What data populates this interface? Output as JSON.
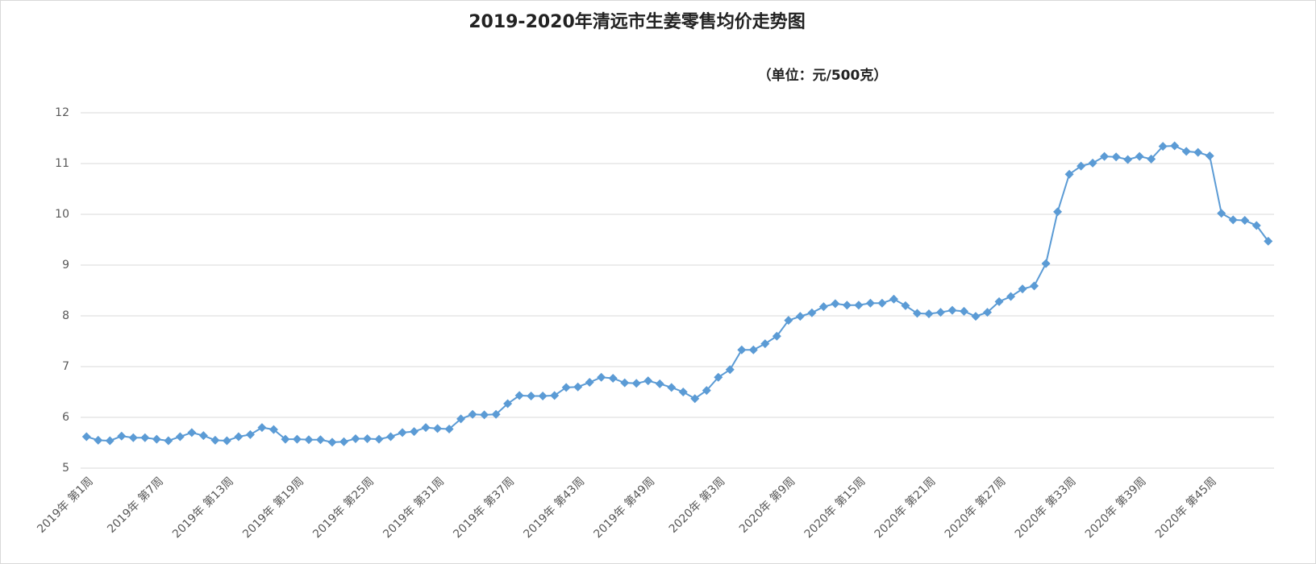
{
  "chart_data": {
    "type": "line",
    "title": "2019-2020年清远市生姜零售均价走势图",
    "subtitle": "（单位：元/500克）",
    "categories": [
      "2019年 第1周",
      null,
      null,
      null,
      null,
      null,
      "2019年 第7周",
      null,
      null,
      null,
      null,
      null,
      "2019年 第13周",
      null,
      null,
      null,
      null,
      null,
      "2019年 第19周",
      null,
      null,
      null,
      null,
      null,
      "2019年 第25周",
      null,
      null,
      null,
      null,
      null,
      "2019年 第31周",
      null,
      null,
      null,
      null,
      null,
      "2019年 第37周",
      null,
      null,
      null,
      null,
      null,
      "2019年 第43周",
      null,
      null,
      null,
      null,
      null,
      "2019年 第49周",
      null,
      null,
      null,
      null,
      null,
      "2020年 第3周",
      null,
      null,
      null,
      null,
      null,
      "2020年 第9周",
      null,
      null,
      null,
      null,
      null,
      "2020年 第15周",
      null,
      null,
      null,
      null,
      null,
      "2020年 第21周",
      null,
      null,
      null,
      null,
      null,
      "2020年 第27周",
      null,
      null,
      null,
      null,
      null,
      "2020年 第33周",
      null,
      null,
      null,
      null,
      null,
      "2020年 第39周",
      null,
      null,
      null,
      null,
      null,
      "2020年 第45周",
      null,
      null,
      null,
      null,
      null
    ],
    "values": [
      5.62,
      5.55,
      5.54,
      5.63,
      5.6,
      5.6,
      5.57,
      5.54,
      5.62,
      5.7,
      5.64,
      5.55,
      5.54,
      5.62,
      5.66,
      5.8,
      5.76,
      5.57,
      5.57,
      5.56,
      5.56,
      5.51,
      5.52,
      5.58,
      5.58,
      5.57,
      5.62,
      5.7,
      5.72,
      5.8,
      5.78,
      5.77,
      5.97,
      6.06,
      6.05,
      6.06,
      6.27,
      6.43,
      6.42,
      6.42,
      6.43,
      6.59,
      6.6,
      6.69,
      6.79,
      6.77,
      6.68,
      6.67,
      6.72,
      6.66,
      6.59,
      6.5,
      6.37,
      6.53,
      6.79,
      6.94,
      7.33,
      7.33,
      7.45,
      7.6,
      7.91,
      7.99,
      8.06,
      8.18,
      8.24,
      8.21,
      8.21,
      8.25,
      8.25,
      8.33,
      8.2,
      8.05,
      8.04,
      8.07,
      8.11,
      8.09,
      7.99,
      8.07,
      8.28,
      8.38,
      8.53,
      8.59,
      9.03,
      10.05,
      10.79,
      10.95,
      11.01,
      11.14,
      11.13,
      11.08,
      11.14,
      11.09,
      11.34,
      11.35,
      11.24,
      11.22,
      11.15,
      10.02,
      9.89,
      9.88,
      9.78,
      9.47
    ],
    "color": "#5b9bd5",
    "ylim": [
      5,
      12
    ],
    "yticks": [
      5,
      6,
      7,
      8,
      9,
      10,
      11,
      12
    ],
    "grid": true
  }
}
